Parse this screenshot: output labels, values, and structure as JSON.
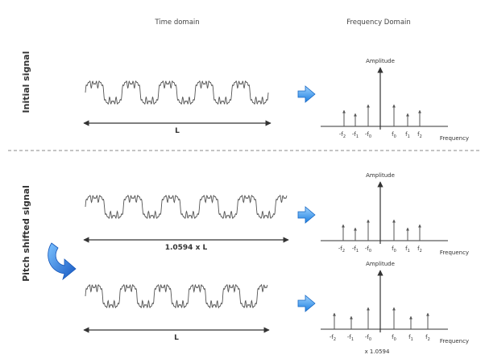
{
  "headers": {
    "time_domain": "Time domain",
    "frequency_domain": "Frequency Domain"
  },
  "rows": [
    {
      "side_label": "Initial signal",
      "length_label": "L",
      "amplitude_label": "Amplitude",
      "frequency_label": "Frequency",
      "ticks": [
        {
          "sym": "-f",
          "sub": "2"
        },
        {
          "sym": "-f",
          "sub": "1"
        },
        {
          "sym": "-f",
          "sub": "0"
        },
        {
          "sym": "f",
          "sub": "0"
        },
        {
          "sym": "f",
          "sub": "1"
        },
        {
          "sym": "f",
          "sub": "2"
        }
      ],
      "multiplier": ""
    },
    {
      "side_label": "",
      "length_label": "1.0594 x L",
      "amplitude_label": "Amplitude",
      "frequency_label": "Frequency",
      "ticks": [
        {
          "sym": "-f",
          "sub": "2"
        },
        {
          "sym": "-f",
          "sub": "1"
        },
        {
          "sym": "-f",
          "sub": "0"
        },
        {
          "sym": "f",
          "sub": "0"
        },
        {
          "sym": "f",
          "sub": "1"
        },
        {
          "sym": "f",
          "sub": "2"
        }
      ],
      "multiplier": ""
    },
    {
      "side_label": "",
      "length_label": "L",
      "amplitude_label": "Amplitude",
      "frequency_label": "Frequency",
      "ticks": [
        {
          "sym": "-f",
          "sub": "2"
        },
        {
          "sym": "-f",
          "sub": "1"
        },
        {
          "sym": "-f",
          "sub": "0"
        },
        {
          "sym": "f",
          "sub": "0"
        },
        {
          "sym": "f",
          "sub": "1"
        },
        {
          "sym": "f",
          "sub": "2"
        }
      ],
      "multiplier": "x 1.0594"
    }
  ],
  "pitch_shifted_label": "Pitch shifted signal",
  "colors": {
    "arrow_blue": "#2e8fe6",
    "arrow_blue_light": "#9fd3ff",
    "curve_arrow_blue": "#1f6fd6",
    "line": "#333333",
    "dash": "#888888"
  },
  "icons": {
    "row_arrow": "right-arrow-icon",
    "curve_arrow": "curved-arrow-icon"
  }
}
